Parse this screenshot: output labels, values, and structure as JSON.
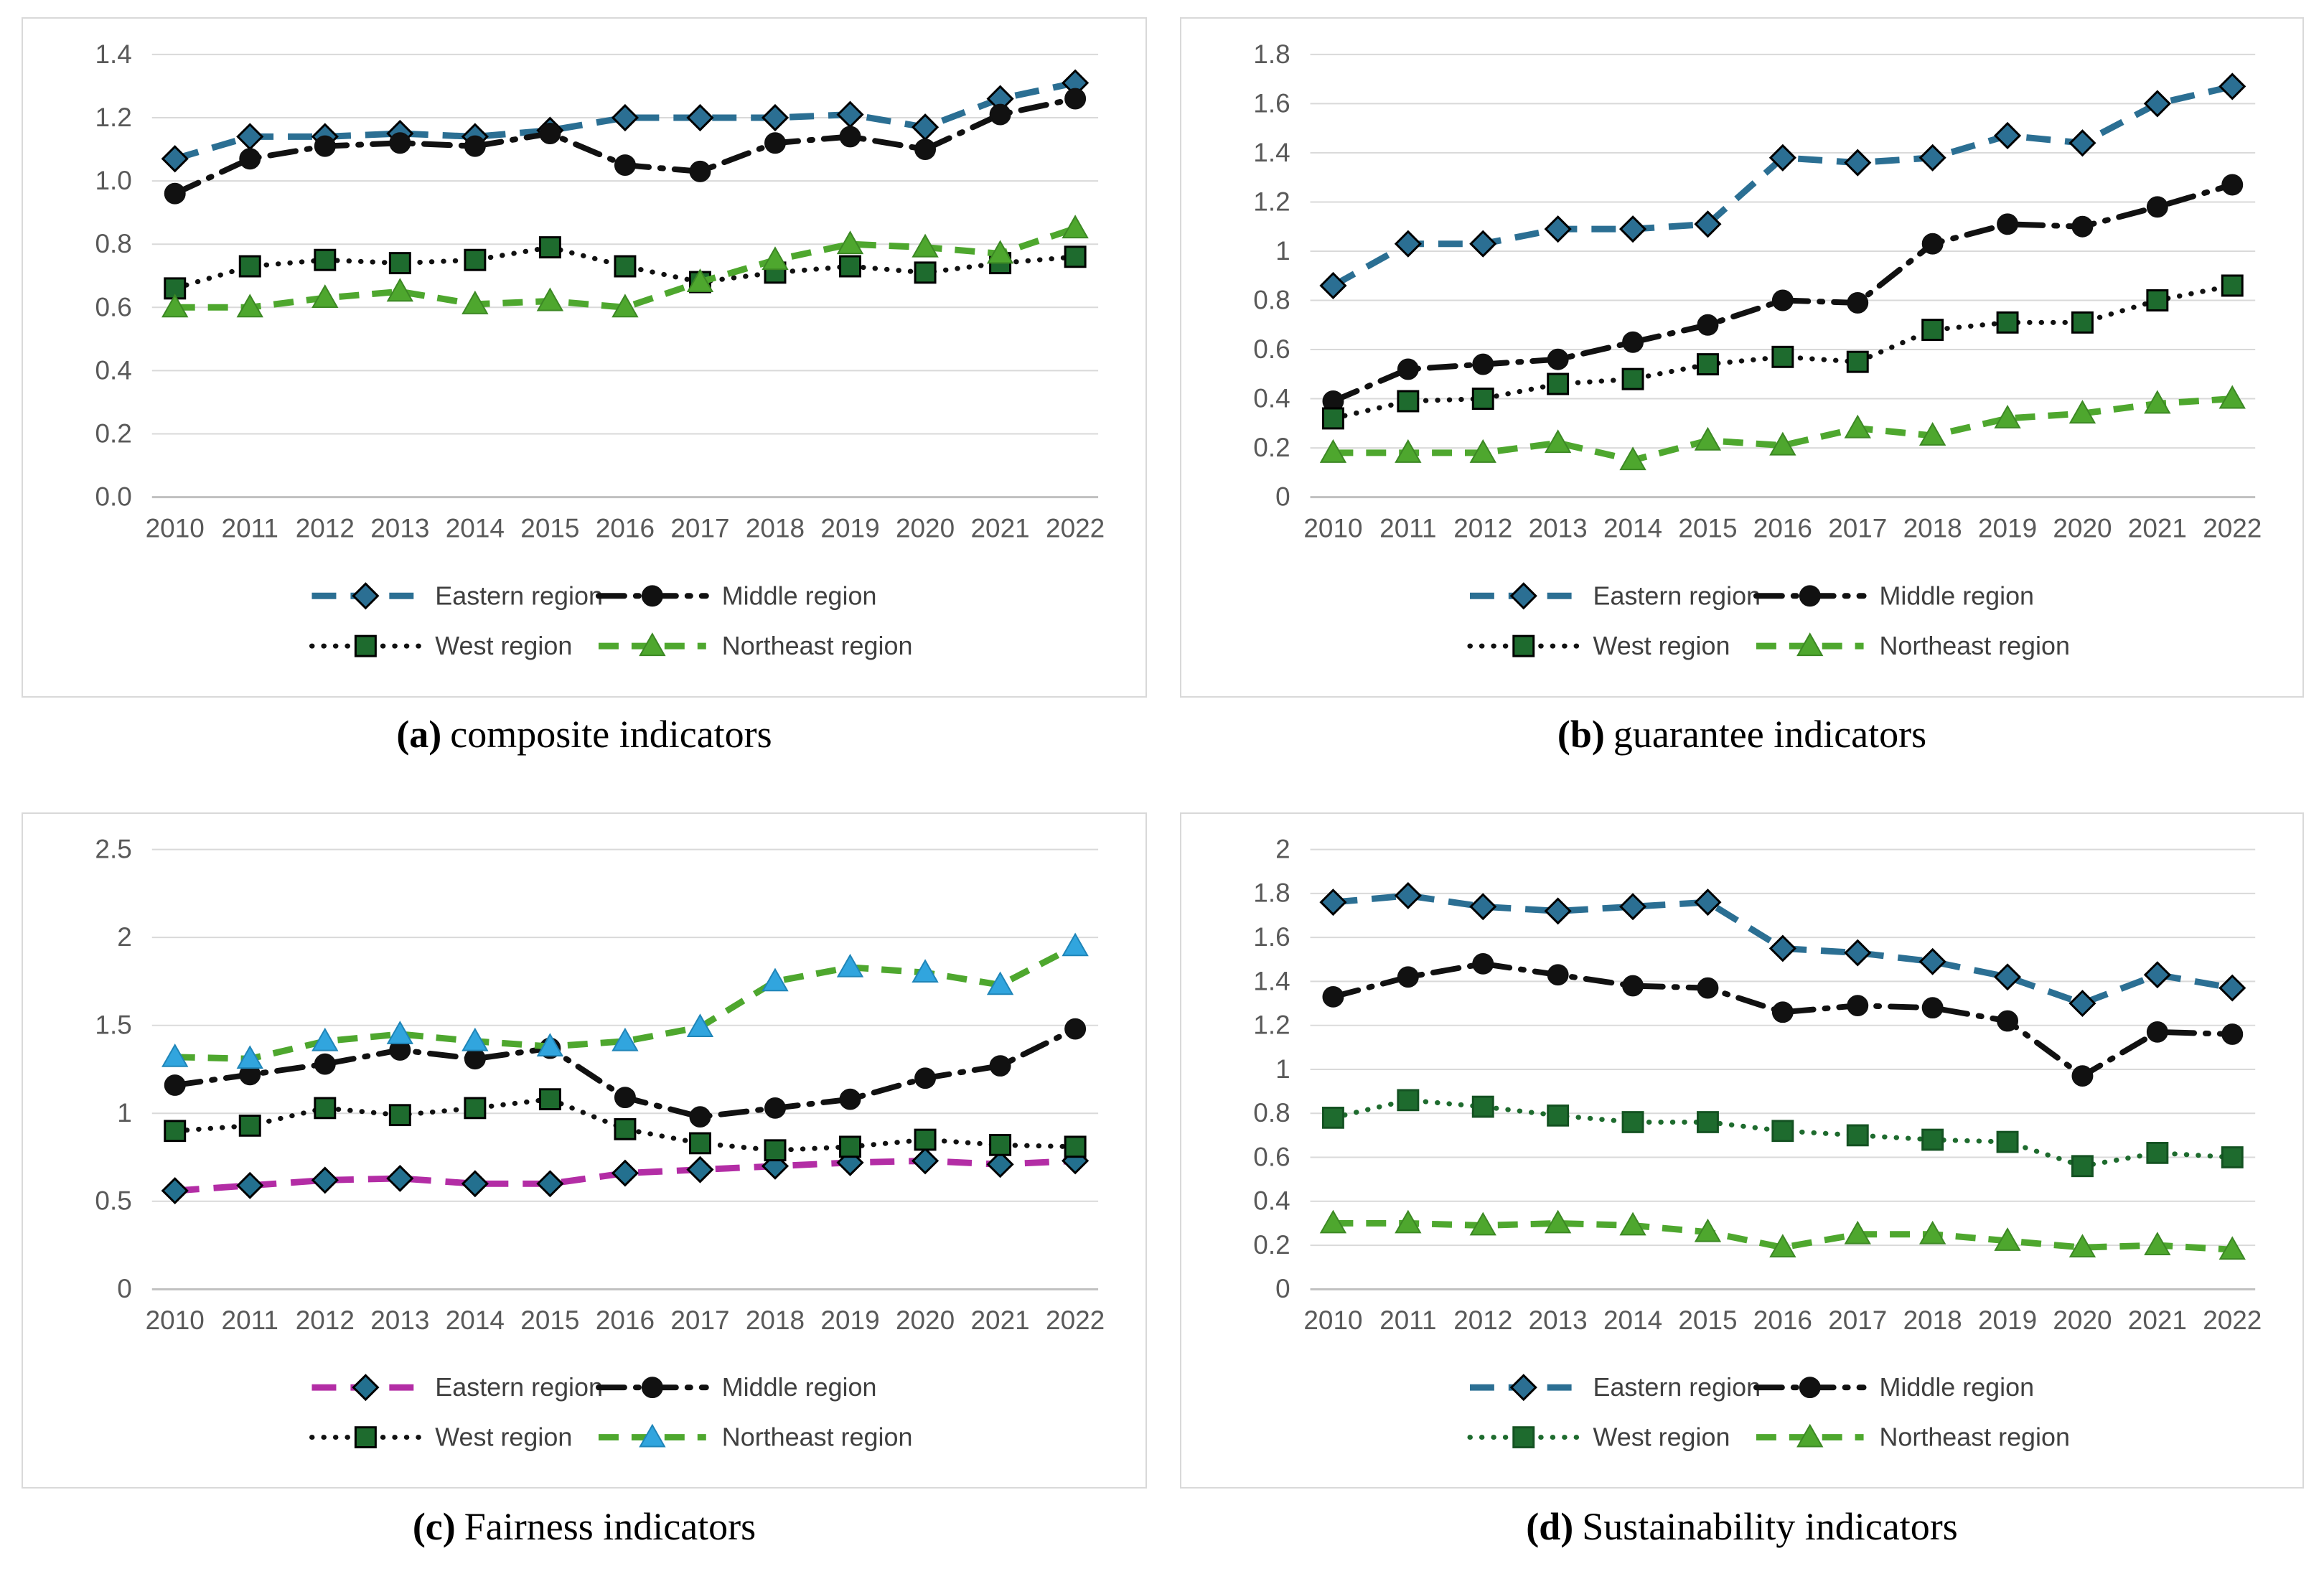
{
  "figure": {
    "description": "Four line charts comparing regional indicator indices 2010-2022",
    "regions": [
      "Eastern region",
      "Middle region",
      "West region",
      "Northeast region"
    ],
    "colors": {
      "eastern_line": "#2B6F93",
      "eastern_line_fairness": "#B32DA5",
      "middle_line": "#111111",
      "west_marker": "#1E6B2E",
      "northeast_line": "#4EA72E",
      "northeast_marker_fairness": "#31A5DE",
      "gridline": "#D9D9D9",
      "axis_line": "#C0C0C0",
      "tick_text": "#595959"
    }
  },
  "chart_data": [
    {
      "id": "a",
      "type": "line",
      "caption": {
        "label": "(a)",
        "text": "composite indicators"
      },
      "x": [
        2010,
        2011,
        2012,
        2013,
        2014,
        2015,
        2016,
        2017,
        2018,
        2019,
        2020,
        2021,
        2022
      ],
      "ylim": [
        0,
        1.4
      ],
      "ytick_step": 0.2,
      "tick_format": "one_decimal",
      "grid": true,
      "legend_position": "bottom",
      "series": [
        {
          "name": "Eastern region",
          "style": "long-dash",
          "marker": "diamond",
          "line_color": "#2B6F93",
          "marker_fill": "#2B6F93",
          "marker_stroke": "#000000",
          "values": [
            1.07,
            1.14,
            1.14,
            1.15,
            1.14,
            1.16,
            1.2,
            1.2,
            1.2,
            1.21,
            1.17,
            1.26,
            1.31
          ]
        },
        {
          "name": "Middle region",
          "style": "dash-dot",
          "marker": "circle",
          "line_color": "#111111",
          "marker_fill": "#111111",
          "marker_stroke": "#111111",
          "values": [
            0.96,
            1.07,
            1.11,
            1.12,
            1.11,
            1.15,
            1.05,
            1.03,
            1.12,
            1.14,
            1.1,
            1.21,
            1.26
          ]
        },
        {
          "name": "West region",
          "style": "dot",
          "marker": "square",
          "line_color": "#111111",
          "marker_fill": "#1E6B2E",
          "marker_stroke": "#000000",
          "values": [
            0.66,
            0.73,
            0.75,
            0.74,
            0.75,
            0.79,
            0.73,
            0.68,
            0.71,
            0.73,
            0.71,
            0.74,
            0.76
          ]
        },
        {
          "name": "Northeast region",
          "style": "dash",
          "marker": "triangle",
          "line_color": "#4EA72E",
          "marker_fill": "#4EA72E",
          "marker_stroke": "#3C8824",
          "values": [
            0.6,
            0.6,
            0.63,
            0.65,
            0.61,
            0.62,
            0.6,
            0.68,
            0.75,
            0.8,
            0.79,
            0.77,
            0.85
          ]
        }
      ]
    },
    {
      "id": "b",
      "type": "line",
      "caption": {
        "label": "(b)",
        "text": "guarantee indicators"
      },
      "x": [
        2010,
        2011,
        2012,
        2013,
        2014,
        2015,
        2016,
        2017,
        2018,
        2019,
        2020,
        2021,
        2022
      ],
      "ylim": [
        0,
        1.8
      ],
      "ytick_step": 0.2,
      "tick_format": "compact",
      "grid": true,
      "legend_position": "bottom",
      "series": [
        {
          "name": "Eastern region",
          "style": "long-dash",
          "marker": "diamond",
          "line_color": "#2B6F93",
          "marker_fill": "#2B6F93",
          "marker_stroke": "#000000",
          "values": [
            0.86,
            1.03,
            1.03,
            1.09,
            1.09,
            1.11,
            1.38,
            1.36,
            1.38,
            1.47,
            1.44,
            1.6,
            1.67
          ]
        },
        {
          "name": "Middle region",
          "style": "dash-dot",
          "marker": "circle",
          "line_color": "#111111",
          "marker_fill": "#111111",
          "marker_stroke": "#111111",
          "values": [
            0.39,
            0.52,
            0.54,
            0.56,
            0.63,
            0.7,
            0.8,
            0.79,
            1.03,
            1.11,
            1.1,
            1.18,
            1.27
          ]
        },
        {
          "name": "West region",
          "style": "dot",
          "marker": "square",
          "line_color": "#111111",
          "marker_fill": "#1E6B2E",
          "marker_stroke": "#000000",
          "values": [
            0.32,
            0.39,
            0.4,
            0.46,
            0.48,
            0.54,
            0.57,
            0.55,
            0.68,
            0.71,
            0.71,
            0.8,
            0.86
          ]
        },
        {
          "name": "Northeast region",
          "style": "dash",
          "marker": "triangle",
          "line_color": "#4EA72E",
          "marker_fill": "#4EA72E",
          "marker_stroke": "#3C8824",
          "values": [
            0.18,
            0.18,
            0.18,
            0.22,
            0.15,
            0.23,
            0.21,
            0.28,
            0.25,
            0.32,
            0.34,
            0.38,
            0.4
          ]
        }
      ]
    },
    {
      "id": "c",
      "type": "line",
      "caption": {
        "label": "(c)",
        "text": "Fairness indicators"
      },
      "x": [
        2010,
        2011,
        2012,
        2013,
        2014,
        2015,
        2016,
        2017,
        2018,
        2019,
        2020,
        2021,
        2022
      ],
      "ylim": [
        0,
        2.5
      ],
      "ytick_step": 0.5,
      "tick_format": "compact",
      "grid": true,
      "legend_position": "bottom",
      "series": [
        {
          "name": "Eastern region",
          "style": "long-dash",
          "marker": "diamond",
          "line_color": "#B32DA5",
          "marker_fill": "#23708F",
          "marker_stroke": "#000000",
          "values": [
            0.56,
            0.59,
            0.62,
            0.63,
            0.6,
            0.6,
            0.66,
            0.68,
            0.7,
            0.72,
            0.73,
            0.71,
            0.73
          ]
        },
        {
          "name": "Middle region",
          "style": "dash-dot",
          "marker": "circle",
          "line_color": "#111111",
          "marker_fill": "#111111",
          "marker_stroke": "#111111",
          "values": [
            1.16,
            1.22,
            1.28,
            1.36,
            1.31,
            1.37,
            1.09,
            0.98,
            1.03,
            1.08,
            1.2,
            1.27,
            1.48
          ]
        },
        {
          "name": "West region",
          "style": "dot",
          "marker": "square",
          "line_color": "#111111",
          "marker_fill": "#1E6B2E",
          "marker_stroke": "#000000",
          "values": [
            0.9,
            0.93,
            1.03,
            0.99,
            1.03,
            1.08,
            0.91,
            0.83,
            0.79,
            0.81,
            0.85,
            0.82,
            0.81
          ]
        },
        {
          "name": "Northeast region",
          "style": "dash",
          "marker": "triangle",
          "line_color": "#4EA72E",
          "marker_fill": "#31A5DE",
          "marker_stroke": "#1F85B8",
          "values": [
            1.32,
            1.31,
            1.41,
            1.45,
            1.41,
            1.38,
            1.41,
            1.49,
            1.75,
            1.83,
            1.8,
            1.73,
            1.95
          ]
        }
      ]
    },
    {
      "id": "d",
      "type": "line",
      "caption": {
        "label": "(d)",
        "text": "Sustainability indicators"
      },
      "x": [
        2010,
        2011,
        2012,
        2013,
        2014,
        2015,
        2016,
        2017,
        2018,
        2019,
        2020,
        2021,
        2022
      ],
      "ylim": [
        0,
        2.0
      ],
      "ytick_step": 0.2,
      "tick_format": "compact",
      "grid": true,
      "legend_position": "bottom",
      "series": [
        {
          "name": "Eastern region",
          "style": "long-dash",
          "marker": "diamond",
          "line_color": "#2B6F93",
          "marker_fill": "#2B6F93",
          "marker_stroke": "#000000",
          "values": [
            1.76,
            1.79,
            1.74,
            1.72,
            1.74,
            1.76,
            1.55,
            1.53,
            1.49,
            1.42,
            1.3,
            1.43,
            1.37
          ]
        },
        {
          "name": "Middle region",
          "style": "dash-dot",
          "marker": "circle",
          "line_color": "#111111",
          "marker_fill": "#111111",
          "marker_stroke": "#111111",
          "values": [
            1.33,
            1.42,
            1.48,
            1.43,
            1.38,
            1.37,
            1.26,
            1.29,
            1.28,
            1.22,
            0.97,
            1.17,
            1.16
          ]
        },
        {
          "name": "West region",
          "style": "dot",
          "marker": "square",
          "line_color": "#1E6B2E",
          "marker_fill": "#1E6B2E",
          "marker_stroke": "#145222",
          "values": [
            0.78,
            0.86,
            0.83,
            0.79,
            0.76,
            0.76,
            0.72,
            0.7,
            0.68,
            0.67,
            0.56,
            0.62,
            0.6
          ]
        },
        {
          "name": "Northeast region",
          "style": "dash",
          "marker": "triangle",
          "line_color": "#4EA72E",
          "marker_fill": "#4EA72E",
          "marker_stroke": "#3C8824",
          "values": [
            0.3,
            0.3,
            0.29,
            0.3,
            0.29,
            0.26,
            0.19,
            0.25,
            0.25,
            0.22,
            0.19,
            0.2,
            0.18
          ]
        }
      ]
    }
  ]
}
